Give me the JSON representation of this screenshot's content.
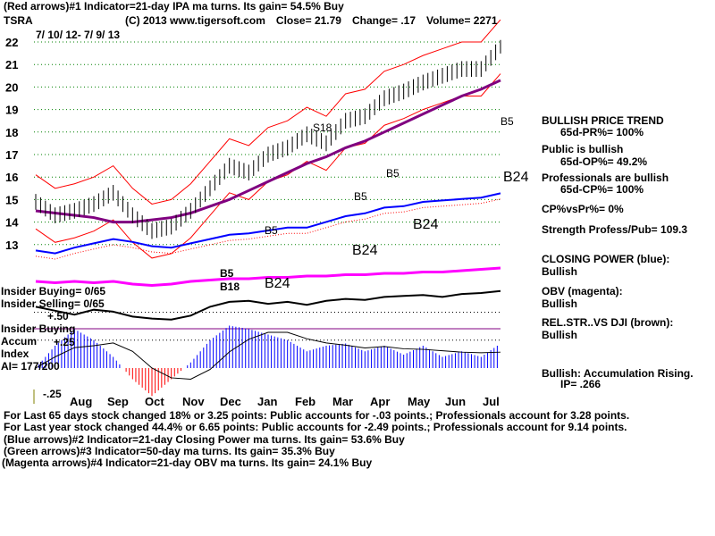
{
  "header": {
    "line1": "(Red arrows)#1 Indicator=21-day IPA ma turns. Its gain= 54.5% Buy",
    "ticker": "TSRA",
    "copyright": "(C) 2013 www.tigersoft.com",
    "close": "Close=  21.79",
    "change": "Change= .17",
    "volume": "Volume=  2271",
    "date_range": "7/ 10/ 12- 7/ 9/ 13"
  },
  "side": {
    "trend": "BULLISH PRICE TREND",
    "pr": "65d-PR%= 100%",
    "public": "Public is bullish",
    "op": "65d-OP%= 49.2%",
    "pros": "Professionals are bullish",
    "cp": "65d-CP%= 100%",
    "cpvspr": "CP%vsPr%=  0%",
    "strength": "Strength Profess/Pub= 109.3",
    "cp_title": "CLOSING POWER (blue):",
    "cp_val": "Bullish",
    "obv_title": "OBV (magenta):",
    "obv_val": "Bullish",
    "rs_title": "REL.STR..VS DJI (brown):",
    "rs_val": "Bullish",
    "accum": "Bullish: Accumulation Rising.",
    "ip": "IP=  .266"
  },
  "left_labels": {
    "insider_buying": "Insider Buying= 0/65",
    "insider_selling": "Insider Selling= 0/65",
    "insider_buying2": "Insider Buying",
    "accum": "Accum",
    "index": "Index",
    "ai": "AI= 177/200",
    "p50": "+.50",
    "p25": "+.25",
    "m25": "-.25"
  },
  "signals": [
    "S18",
    "B5",
    "B5",
    "B5",
    "B5",
    "B24",
    "B24",
    "B24",
    "B24",
    "B5",
    "B18"
  ],
  "footer": [
    "For Last 65 days stock changed  18% or  3.25 points:  Public accounts for -.03 points.;  Professionals account for  3.28 points.",
    "For Last year stock changed  44.4% or  6.65 points:  Public accounts for -2.49 points.;  Professionals account for  9.14 points.",
    "(Blue arrows)#2 Indicator=21-day Closing Power ma turns. Its gain= 53.6% Buy",
    "(Green arrows)#3 Indicator=50-day ma turns. Its gain= 35.3% Buy",
    "(Magenta arrows)#4 Indicator=21-day OBV ma turns. Its gain= 24.1% Buy"
  ],
  "chart_data": {
    "type": "line",
    "title": "TSRA",
    "yticks": [
      13,
      14,
      15,
      16,
      17,
      18,
      19,
      20,
      21,
      22
    ],
    "ylim": [
      12.5,
      22.5
    ],
    "months": [
      "Aug",
      "Sep",
      "Oct",
      "Nov",
      "Dec",
      "Jan",
      "Feb",
      "Mar",
      "Apr",
      "May",
      "Jun",
      "Jul"
    ],
    "price": [
      14.9,
      14.3,
      14.5,
      14.8,
      15.3,
      14.3,
      13.6,
      13.8,
      14.5,
      15.5,
      16.5,
      16.2,
      17.0,
      17.3,
      17.9,
      17.5,
      18.5,
      18.7,
      19.5,
      19.8,
      20.2,
      20.5,
      20.8,
      20.8,
      21.79
    ],
    "ma50": [
      14.5,
      14.4,
      14.3,
      14.2,
      14.0,
      14.0,
      14.1,
      14.2,
      14.4,
      14.7,
      15.0,
      15.4,
      15.8,
      16.2,
      16.6,
      16.9,
      17.3,
      17.6,
      18.0,
      18.4,
      18.8,
      19.2,
      19.6,
      19.9,
      20.3
    ],
    "closing_power": [
      0.3,
      0.2,
      0.4,
      0.55,
      0.7,
      0.6,
      0.45,
      0.4,
      0.55,
      0.7,
      0.85,
      0.9,
      1.0,
      1.1,
      1.1,
      1.3,
      1.5,
      1.6,
      1.8,
      1.85,
      2.0,
      2.05,
      2.1,
      2.15,
      2.3
    ],
    "obv": [
      0.1,
      0.05,
      0.1,
      0.05,
      0.1,
      0.0,
      -0.05,
      0.0,
      0.1,
      0.15,
      0.2,
      0.2,
      0.25,
      0.25,
      0.3,
      0.3,
      0.35,
      0.35,
      0.4,
      0.4,
      0.45,
      0.45,
      0.5,
      0.55,
      0.6
    ],
    "rel_str": [
      0.3,
      0.1,
      -0.1,
      0.15,
      0.05,
      -0.2,
      -0.3,
      -0.35,
      -0.15,
      0.3,
      0.55,
      0.6,
      0.45,
      0.55,
      0.4,
      0.6,
      0.7,
      0.65,
      0.8,
      0.85,
      0.9,
      0.8,
      0.95,
      1.0,
      1.1
    ],
    "accum_index": [
      0.0,
      0.2,
      0.35,
      0.25,
      0.1,
      -0.1,
      -0.25,
      -0.1,
      0.05,
      0.25,
      0.38,
      0.35,
      0.3,
      0.25,
      0.15,
      0.2,
      0.22,
      0.15,
      0.2,
      0.12,
      0.2,
      0.1,
      0.15,
      0.1,
      0.22
    ]
  },
  "colors": {
    "price": "#000000",
    "ma50": "#800080",
    "band": "#ff0000",
    "cp": "#0000ff",
    "obv": "#ff00ff",
    "accum_pos": "#0000ff",
    "accum_neg": "#ff0000"
  }
}
